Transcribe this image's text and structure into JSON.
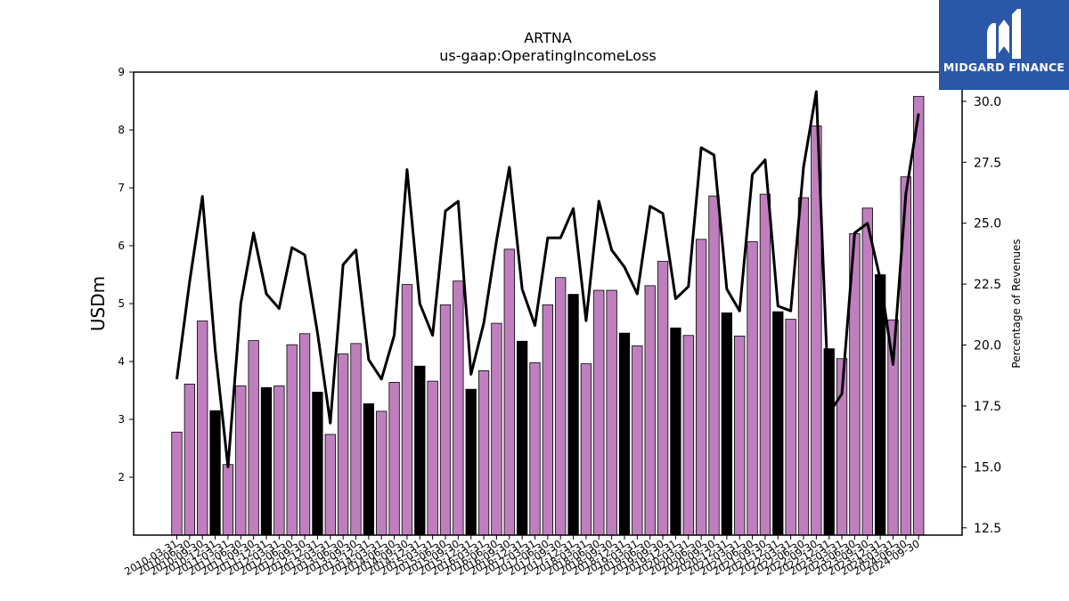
{
  "brand": {
    "name": "MIDGARD FINANCE",
    "color": "#2b57a8"
  },
  "chart_data": {
    "type": "bar",
    "title": "ARTNA",
    "subtitle": "us-gaap:OperatingIncomeLoss",
    "ylabel": "USDm",
    "y2label": "Percentage of Revenues",
    "ylim": [
      1.0,
      9.0
    ],
    "y2lim": [
      12.2,
      31.2
    ],
    "yticks": [
      2,
      3,
      4,
      5,
      6,
      7,
      8,
      9
    ],
    "y2ticks": [
      "12.5",
      "15.0",
      "17.5",
      "20.0",
      "22.5",
      "25.0",
      "27.5",
      "30.0"
    ],
    "colors": {
      "bar": "#bf7fbf",
      "bar_q4": "#000000",
      "line": "#000000"
    },
    "categories": [
      "2010-03-31",
      "2010-06-30",
      "2010-09-30",
      "2010-12-31",
      "2011-03-31",
      "2011-06-30",
      "2011-09-30",
      "2011-12-31",
      "2012-03-31",
      "2012-06-30",
      "2012-09-30",
      "2012-12-31",
      "2013-03-31",
      "2013-06-30",
      "2013-09-30",
      "2013-12-31",
      "2014-03-31",
      "2014-06-30",
      "2014-09-30",
      "2014-12-31",
      "2015-03-31",
      "2015-06-30",
      "2015-09-30",
      "2015-12-31",
      "2016-03-31",
      "2016-06-30",
      "2016-09-30",
      "2016-12-31",
      "2017-03-31",
      "2017-06-30",
      "2017-09-30",
      "2017-12-31",
      "2018-03-31",
      "2018-06-30",
      "2018-09-30",
      "2018-12-31",
      "2019-03-31",
      "2019-06-30",
      "2019-09-30",
      "2019-12-31",
      "2020-03-31",
      "2020-06-30",
      "2020-09-30",
      "2020-12-31",
      "2021-03-31",
      "2021-06-30",
      "2021-09-30",
      "2021-12-31",
      "2022-03-31",
      "2022-06-30",
      "2022-09-30",
      "2022-12-31",
      "2023-03-31",
      "2023-06-30",
      "2023-09-30",
      "2023-12-31",
      "2024-03-31",
      "2024-06-30",
      "2024-09-30"
    ],
    "series": [
      {
        "kind": "bar",
        "values": [
          2.78,
          3.61,
          4.7,
          3.15,
          2.22,
          3.58,
          4.36,
          3.55,
          3.58,
          4.29,
          4.48,
          3.47,
          2.74,
          4.13,
          4.31,
          3.27,
          3.14,
          3.64,
          5.33,
          3.92,
          3.66,
          4.98,
          5.39,
          3.52,
          3.84,
          4.66,
          5.94,
          4.35,
          3.98,
          4.98,
          5.45,
          5.16,
          3.96,
          5.23,
          5.23,
          4.49,
          4.27,
          5.31,
          5.73,
          4.58,
          4.45,
          6.11,
          6.86,
          4.84,
          4.44,
          6.07,
          6.89,
          4.86,
          4.73,
          6.83,
          8.07,
          4.22,
          4.05,
          6.21,
          6.65,
          5.5,
          4.72,
          7.19,
          8.58
        ]
      },
      {
        "kind": "line",
        "axis": "right",
        "values": [
          18.6,
          22.6,
          26.1,
          19.8,
          15.0,
          21.7,
          24.6,
          22.1,
          21.5,
          24.0,
          23.7,
          20.5,
          16.8,
          23.3,
          23.9,
          19.4,
          18.6,
          20.4,
          27.2,
          21.7,
          20.4,
          25.5,
          25.9,
          18.8,
          20.9,
          24.3,
          27.3,
          22.3,
          20.8,
          24.4,
          24.4,
          25.6,
          21.0,
          25.9,
          23.9,
          23.2,
          22.1,
          25.7,
          25.4,
          21.9,
          22.4,
          28.1,
          27.8,
          22.3,
          21.4,
          27.0,
          27.6,
          21.6,
          21.4,
          27.3,
          30.4,
          17.2,
          18.0,
          24.6,
          25.0,
          22.7,
          19.2,
          26.2,
          29.5
        ]
      }
    ]
  }
}
